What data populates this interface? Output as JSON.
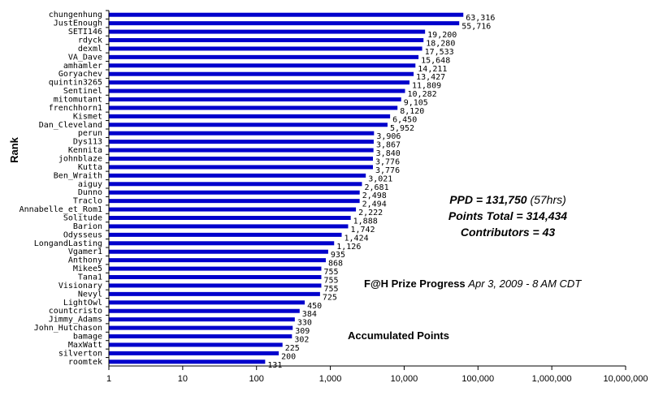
{
  "chart_data": {
    "type": "bar",
    "orientation": "horizontal",
    "xscale": "log",
    "xlim": [
      1,
      10000000
    ],
    "x_ticks": [
      "1",
      "10",
      "100",
      "1,000",
      "10,000",
      "100,000",
      "1,000,000",
      "10,000,000"
    ],
    "ylabel": "Rank",
    "bar_color": "#0000cc",
    "grid": false,
    "categories": [
      "chungenhung",
      "JustEnough",
      "SETI146",
      "rdyck",
      "dexml",
      "VA_Dave",
      "amhamler",
      "Goryachev",
      "quintin3265",
      "Sentinel",
      "mitomutant",
      "frenchhorn1",
      "Kismet",
      "Dan_Cleveland",
      "perun",
      "Dys113",
      "Kennita",
      "johnblaze",
      "Kutta",
      "Ben_Wraith",
      "aiguy",
      "Dunno",
      "Traclo",
      "Annabelle_et_Rom1",
      "Solitude",
      "Barion",
      "Odysseus",
      "LongandLasting",
      "Vgamer1",
      "Anthony",
      "Mikee5",
      "Tana1",
      "Visionary",
      "Nevyl",
      "LightOwl",
      "countcristo",
      "Jimmy_Adams",
      "John_Hutchason",
      "bamage",
      "MaxWatt",
      "silverton",
      "roomtek"
    ],
    "values": [
      63316,
      55716,
      19200,
      18280,
      17533,
      15648,
      14211,
      13427,
      11809,
      10282,
      9105,
      8120,
      6450,
      5952,
      3906,
      3867,
      3840,
      3776,
      3776,
      3021,
      2681,
      2498,
      2494,
      2222,
      1888,
      1742,
      1424,
      1126,
      935,
      868,
      755,
      755,
      755,
      725,
      450,
      384,
      330,
      309,
      302,
      225,
      200,
      131
    ],
    "labels": [
      "63,316",
      "55,716",
      "19,200",
      "18,280",
      "17,533",
      "15,648",
      "14,211",
      "13,427",
      "11,809",
      "10,282",
      "9,105",
      "8,120",
      "6,450",
      "5,952",
      "3,906",
      "3,867",
      "3,840",
      "3,776",
      "3,776",
      "3,021",
      "2,681",
      "2,498",
      "2,494",
      "2,222",
      "1,888",
      "1,742",
      "1,424",
      "1,126",
      "935",
      "868",
      "755",
      "755",
      "755",
      "725",
      "450",
      "384",
      "330",
      "309",
      "302",
      "225",
      "200",
      "131"
    ]
  },
  "annotations": {
    "ppd": "PPD = 131,750",
    "ppd_note": "(57hrs)",
    "points_total": "Points Total = 314,434",
    "contributors": "Contributors = 43",
    "progress_title": "F@H Prize Progress",
    "progress_date": "Apr 3, 2009 - 8 AM CDT",
    "accumulated": "Accumulated Points"
  }
}
